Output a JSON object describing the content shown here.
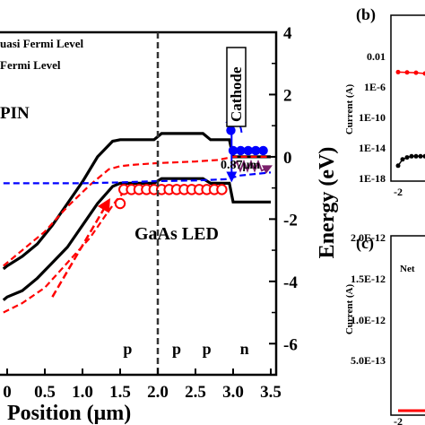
{
  "chart_data": [
    {
      "id": "a",
      "type": "line",
      "xlabel": "Position (μm)",
      "ylabel": "Energy (eV)",
      "xlim": [
        -0.05,
        3.5
      ],
      "ylim": [
        -7,
        4
      ],
      "x_ticks": [
        "0",
        "0.5",
        "1.0",
        "1.5",
        "2.0",
        "2.5",
        "3.0",
        "3.5"
      ],
      "x_tick_values": [
        0,
        0.5,
        1.0,
        1.5,
        2.0,
        2.5,
        3.0,
        3.5
      ],
      "y_ticks": [
        "-6",
        "-4",
        "-2",
        "0",
        "2",
        "4"
      ],
      "y_tick_values": [
        -6,
        -4,
        -2,
        0,
        2,
        4
      ],
      "grid": false,
      "legend": [
        "uasi Fermi Level",
        "Fermi Level"
      ],
      "annotations": {
        "left_region": "PIN",
        "device": "GaAs LED",
        "cathode": "Cathode",
        "wavelength": "0.87μm",
        "doping": [
          {
            "label": "p",
            "x": 1.6
          },
          {
            "label": "p",
            "x": 2.25
          },
          {
            "label": "p",
            "x": 2.65
          },
          {
            "label": "n",
            "x": 3.15
          }
        ],
        "boundary_x": 2.0
      },
      "series": [
        {
          "role": "conduction-band",
          "color": "#000000",
          "x": [
            -0.05,
            0.0,
            0.2,
            0.4,
            0.6,
            0.8,
            1.0,
            1.2,
            1.4,
            1.5,
            1.6,
            1.95,
            2.05,
            2.6,
            2.7,
            2.95,
            3.0,
            3.5
          ],
          "y": [
            -3.6,
            -3.5,
            -3.2,
            -2.8,
            -2.2,
            -1.5,
            -0.8,
            0.0,
            0.5,
            0.55,
            0.55,
            0.55,
            0.75,
            0.75,
            0.55,
            0.55,
            0.0,
            0.0
          ]
        },
        {
          "role": "valence-band",
          "color": "#000000",
          "x": [
            -0.05,
            0.0,
            0.2,
            0.4,
            0.6,
            0.8,
            1.0,
            1.2,
            1.4,
            1.5,
            1.6,
            1.95,
            2.05,
            2.6,
            2.7,
            2.95,
            3.0,
            3.5
          ],
          "y": [
            -4.6,
            -4.5,
            -4.3,
            -3.9,
            -3.4,
            -2.9,
            -2.2,
            -1.5,
            -0.95,
            -0.85,
            -0.85,
            -0.85,
            -0.7,
            -0.7,
            -0.85,
            -0.85,
            -1.45,
            -1.45
          ]
        },
        {
          "role": "quasi-fermi-electrons",
          "color": "#ff0000",
          "dashed": true,
          "x": [
            -0.05,
            0.2,
            0.5,
            0.8,
            1.1,
            1.35,
            1.5,
            1.7,
            2.0,
            2.5,
            2.8,
            3.0,
            3.5
          ],
          "y": [
            -3.5,
            -3.0,
            -2.4,
            -1.6,
            -0.9,
            -0.4,
            -0.3,
            -0.25,
            -0.2,
            -0.15,
            -0.1,
            0.0,
            0.0
          ]
        },
        {
          "role": "quasi-fermi-holes",
          "color": "#ff0000",
          "dashed": true,
          "x": [
            -0.05,
            0.2,
            0.5,
            0.8,
            1.1,
            1.3,
            1.45,
            1.6
          ],
          "y": [
            -5.0,
            -4.7,
            -4.2,
            -3.4,
            -2.6,
            -1.9,
            -1.4,
            -1.0
          ]
        },
        {
          "role": "fermi-level",
          "color": "#0000ff",
          "dashed": true,
          "x": [
            -0.05,
            0.5,
            1.0,
            1.5,
            2.0,
            2.5,
            2.9,
            3.1,
            3.5
          ],
          "y": [
            -0.85,
            -0.85,
            -0.85,
            -0.82,
            -0.78,
            -0.76,
            -0.72,
            -0.6,
            -0.5
          ]
        },
        {
          "role": "holes",
          "color": "#ff0000",
          "marker": "open-circle",
          "x": [
            1.55,
            1.65,
            1.75,
            1.85,
            1.95,
            2.05,
            2.15,
            2.25,
            2.35,
            2.45,
            2.55,
            2.65,
            2.75,
            2.85
          ],
          "y": [
            -1.05,
            -1.05,
            -1.05,
            -1.05,
            -1.05,
            -1.05,
            -1.05,
            -1.05,
            -1.05,
            -1.05,
            -1.05,
            -1.05,
            -1.05,
            -1.05
          ]
        },
        {
          "role": "hole-entry",
          "color": "#ff0000",
          "marker": "open-circle",
          "x": [
            1.5
          ],
          "y": [
            -1.5
          ]
        },
        {
          "role": "electrons",
          "color": "#0000ff",
          "marker": "filled-circle",
          "x": [
            3.0,
            3.1,
            3.2,
            3.3,
            3.4
          ],
          "y": [
            0.2,
            0.2,
            0.2,
            0.2,
            0.2
          ]
        },
        {
          "role": "electron-top",
          "color": "#0000ff",
          "marker": "filled-circle",
          "x": [
            2.97
          ],
          "y": [
            0.85
          ]
        }
      ]
    },
    {
      "id": "b",
      "type": "scatter",
      "panel_label": "(b)",
      "ylabel": "Current (A)",
      "y_scale": "log",
      "y_ticks": [
        "0.01",
        "1E-6",
        "1E-10",
        "1E-14",
        "1E-18"
      ],
      "x_ticks": [
        "-2"
      ],
      "series": [
        {
          "name": "",
          "color": "#ff0000",
          "x": [
            -2.0,
            -1.9,
            -1.8,
            -1.7,
            -1.6
          ],
          "y": [
            0.05,
            0.045,
            0.04,
            0.03,
            0.02
          ]
        },
        {
          "name": "",
          "color": "#000000",
          "x": [
            -2.0,
            -1.95,
            -1.9,
            -1.85,
            -1.8,
            -1.75,
            -1.7
          ],
          "y": [
            1e-16,
            1e-15,
            2e-15,
            3e-15,
            3e-15,
            3e-15,
            3e-15
          ]
        }
      ]
    },
    {
      "id": "c",
      "type": "line",
      "panel_label": "(c)",
      "ylabel": "Current (A)",
      "y_ticks": [
        "2.0E-12",
        "1.5E-12",
        "1.0E-12",
        "5.0E-13"
      ],
      "y_tick_values": [
        2e-12,
        1.5e-12,
        1e-12,
        5e-13
      ],
      "x_ticks": [
        "-2"
      ],
      "legend_entries": [
        "Net",
        ""
      ],
      "series": [
        {
          "name": "Net",
          "color": "#000000",
          "x": [
            -2.0,
            -1.5
          ],
          "y": [
            0,
            0
          ]
        },
        {
          "name": "",
          "color": "#ff0000",
          "x": [
            -2.0,
            -1.5
          ],
          "y": [
            0,
            0
          ]
        }
      ]
    }
  ]
}
